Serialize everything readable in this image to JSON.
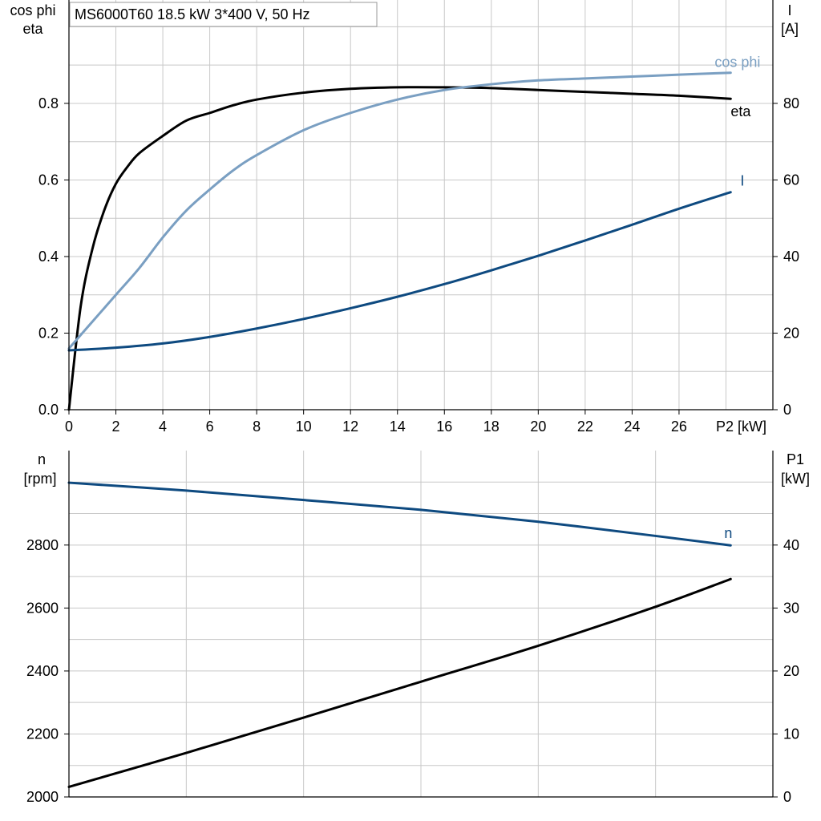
{
  "title": "MS6000T60   18.5 kW   3*400 V, 50 Hz",
  "colors": {
    "eta": "#000000",
    "cos_phi": "#7a9fc2",
    "I": "#0e4a80",
    "n": "#0e4a80",
    "P1": "#000000",
    "grid": "#c8c8c8"
  },
  "chart_data": [
    {
      "type": "line",
      "xlabel": "P2 [kW]",
      "xlim": [
        0,
        30
      ],
      "xticks": [
        0,
        2,
        4,
        6,
        8,
        10,
        12,
        14,
        16,
        18,
        20,
        22,
        24,
        26
      ],
      "ylabel_left_lines": [
        "cos phi",
        "eta"
      ],
      "ylim_left": [
        0,
        1.07
      ],
      "yticks_left": [
        "0.0",
        "0.2",
        "0.4",
        "0.6",
        "0.8"
      ],
      "ylabel_right_lines": [
        "I",
        "[A]"
      ],
      "ylim_right": [
        0,
        107
      ],
      "yticks_right": [
        "0",
        "20",
        "40",
        "60",
        "80"
      ],
      "grid": true,
      "series": [
        {
          "name": "eta",
          "axis": "left",
          "x": [
            0,
            0.5,
            1,
            1.5,
            2,
            2.5,
            3,
            4,
            5,
            6,
            7,
            8,
            10,
            12,
            14,
            16,
            18,
            20,
            22,
            24,
            26,
            28.2
          ],
          "y": [
            0,
            0.27,
            0.42,
            0.52,
            0.59,
            0.635,
            0.67,
            0.715,
            0.755,
            0.775,
            0.795,
            0.81,
            0.828,
            0.838,
            0.842,
            0.842,
            0.84,
            0.835,
            0.83,
            0.825,
            0.82,
            0.812
          ]
        },
        {
          "name": "cos phi",
          "axis": "left",
          "x": [
            0,
            1,
            2,
            3,
            4,
            5,
            6,
            7,
            8,
            10,
            12,
            14,
            16,
            18,
            20,
            22,
            24,
            26,
            28.2
          ],
          "y": [
            0.16,
            0.23,
            0.3,
            0.37,
            0.45,
            0.52,
            0.575,
            0.625,
            0.665,
            0.73,
            0.775,
            0.81,
            0.835,
            0.85,
            0.86,
            0.865,
            0.87,
            0.875,
            0.88
          ]
        },
        {
          "name": "I",
          "axis": "right",
          "x": [
            0,
            2,
            4,
            6,
            8,
            10,
            12,
            14,
            16,
            18,
            20,
            22,
            24,
            26,
            28.2
          ],
          "y": [
            15.5,
            16.2,
            17.3,
            19.0,
            21.2,
            23.7,
            26.5,
            29.5,
            32.8,
            36.4,
            40.2,
            44.2,
            48.3,
            52.5,
            56.8
          ]
        }
      ]
    },
    {
      "type": "line",
      "xlim": [
        0,
        30
      ],
      "ylabel_left_lines": [
        "n",
        "[rpm]"
      ],
      "ylim_left": [
        2000,
        3100
      ],
      "yticks_left": [
        "2000",
        "2200",
        "2400",
        "2600",
        "2800"
      ],
      "ylabel_right_lines": [
        "P1",
        "[kW]"
      ],
      "ylim_right": [
        0,
        55
      ],
      "yticks_right": [
        "0",
        "10",
        "20",
        "30",
        "40"
      ],
      "grid": true,
      "series": [
        {
          "name": "n",
          "axis": "left",
          "x": [
            0,
            5,
            10,
            15,
            20,
            25,
            28.2
          ],
          "y": [
            2998,
            2973,
            2943,
            2912,
            2874,
            2829,
            2799
          ]
        },
        {
          "name": "P1",
          "axis": "right",
          "x": [
            0,
            5,
            10,
            15,
            20,
            25,
            28.2
          ],
          "y": [
            1.6,
            7.0,
            12.6,
            18.3,
            24.0,
            30.2,
            34.6
          ]
        }
      ]
    }
  ]
}
